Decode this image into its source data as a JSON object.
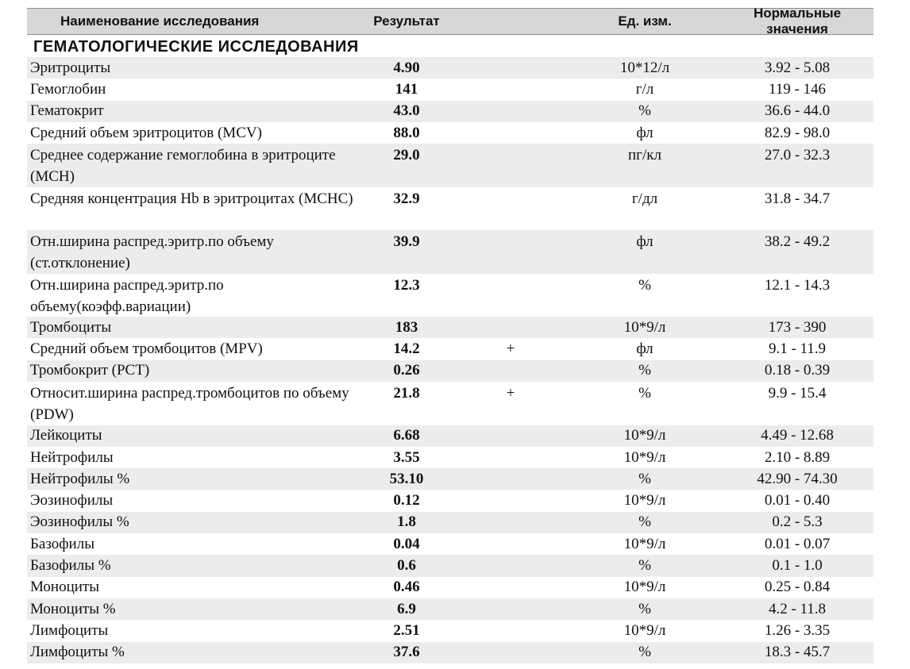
{
  "header": {
    "name": "Наименование исследования",
    "result": "Результат",
    "unit": "Ед. изм.",
    "norm": "Нормальные значения"
  },
  "section_title": "ГЕМАТОЛОГИЧЕСКИЕ ИССЛЕДОВАНИЯ",
  "rows": [
    {
      "name": "Эритроциты",
      "result": "4.90",
      "flag": "",
      "unit": "10*12/л",
      "norm": "3.92 - 5.08"
    },
    {
      "name": "Гемоглобин",
      "result": "141",
      "flag": "",
      "unit": "г/л",
      "norm": "119 - 146"
    },
    {
      "name": "Гематокрит",
      "result": "43.0",
      "flag": "",
      "unit": "%",
      "norm": "36.6 - 44.0"
    },
    {
      "name": "Средний объем эритроцитов (MCV)",
      "result": "88.0",
      "flag": "",
      "unit": "фл",
      "norm": "82.9 - 98.0"
    },
    {
      "name": "Среднее содержание гемоглобина в эритроците (MCH)",
      "result": "29.0",
      "flag": "",
      "unit": "пг/кл",
      "norm": "27.0 - 32.3"
    },
    {
      "name": "Средняя концентрация Hb в эритроцитах (MCHC)",
      "result": "32.9",
      "flag": "",
      "unit": "г/дл",
      "norm": "31.8 - 34.7"
    },
    {
      "name": "Отн.ширина распред.эритр.по объему (ст.отклонение)",
      "result": "39.9",
      "flag": "",
      "unit": "фл",
      "norm": "38.2 - 49.2"
    },
    {
      "name": "Отн.ширина распред.эритр.по объему(коэфф.вариации)",
      "result": "12.3",
      "flag": "",
      "unit": "%",
      "norm": "12.1 - 14.3"
    },
    {
      "name": "Тромбоциты",
      "result": "183",
      "flag": "",
      "unit": "10*9/л",
      "norm": "173 - 390"
    },
    {
      "name": "Средний объем тромбоцитов (MPV)",
      "result": "14.2",
      "flag": "+",
      "unit": "фл",
      "norm": "9.1 - 11.9"
    },
    {
      "name": "Тромбокрит (PCT)",
      "result": "0.26",
      "flag": "",
      "unit": "%",
      "norm": "0.18 - 0.39"
    },
    {
      "name": "Относит.ширина распред.тромбоцитов по объему (PDW)",
      "result": "21.8",
      "flag": "+",
      "unit": "%",
      "norm": "9.9 - 15.4"
    },
    {
      "name": "Лейкоциты",
      "result": "6.68",
      "flag": "",
      "unit": "10*9/л",
      "norm": "4.49 - 12.68"
    },
    {
      "name": "Нейтрофилы",
      "result": "3.55",
      "flag": "",
      "unit": "10*9/л",
      "norm": "2.10 - 8.89"
    },
    {
      "name": "Нейтрофилы %",
      "result": "53.10",
      "flag": "",
      "unit": "%",
      "norm": "42.90 - 74.30"
    },
    {
      "name": "Эозинофилы",
      "result": "0.12",
      "flag": "",
      "unit": "10*9/л",
      "norm": "0.01 - 0.40"
    },
    {
      "name": "Эозинофилы %",
      "result": "1.8",
      "flag": "",
      "unit": "%",
      "norm": "0.2 - 5.3"
    },
    {
      "name": "Базофилы",
      "result": "0.04",
      "flag": "",
      "unit": "10*9/л",
      "norm": "0.01 - 0.07"
    },
    {
      "name": "Базофилы %",
      "result": "0.6",
      "flag": "",
      "unit": "%",
      "norm": "0.1 - 1.0"
    },
    {
      "name": "Моноциты",
      "result": "0.46",
      "flag": "",
      "unit": "10*9/л",
      "norm": "0.25 - 0.84"
    },
    {
      "name": "Моноциты %",
      "result": "6.9",
      "flag": "",
      "unit": "%",
      "norm": "4.2 - 11.8"
    },
    {
      "name": "Лимфоциты",
      "result": "2.51",
      "flag": "",
      "unit": "10*9/л",
      "norm": "1.26 - 3.35"
    },
    {
      "name": "Лимфоциты %",
      "result": "37.6",
      "flag": "",
      "unit": "%",
      "norm": "18.3 - 45.7"
    }
  ]
}
